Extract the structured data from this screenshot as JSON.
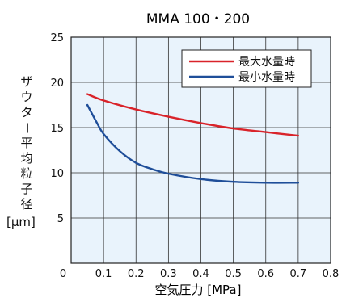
{
  "chart_data": {
    "type": "line",
    "title": "MMA 100・200",
    "xlabel": "空気圧力 [MPa]",
    "ylabel": "ザウター平均粒子径",
    "yunit": "[μm]",
    "xlim": [
      0,
      0.8
    ],
    "ylim": [
      0,
      25
    ],
    "xticks": [
      "0",
      "0.1",
      "0.2",
      "0.3",
      "0.4",
      "0.5",
      "0.6",
      "0.7",
      "0.8"
    ],
    "yticks": [
      "0",
      "5",
      "10",
      "15",
      "20",
      "25"
    ],
    "grid": true,
    "legend_position": "top-right",
    "series": [
      {
        "name": "最大水量時",
        "color": "#d9232a",
        "x": [
          0.05,
          0.1,
          0.2,
          0.3,
          0.4,
          0.5,
          0.6,
          0.7
        ],
        "y": [
          18.7,
          18.0,
          17.0,
          16.2,
          15.5,
          14.9,
          14.5,
          14.1
        ]
      },
      {
        "name": "最小水量時",
        "color": "#1f4e99",
        "x": [
          0.05,
          0.08,
          0.1,
          0.15,
          0.2,
          0.25,
          0.3,
          0.4,
          0.5,
          0.6,
          0.7
        ],
        "y": [
          17.5,
          15.5,
          14.3,
          12.4,
          11.1,
          10.4,
          9.9,
          9.3,
          9.0,
          8.9,
          8.9
        ]
      }
    ]
  }
}
